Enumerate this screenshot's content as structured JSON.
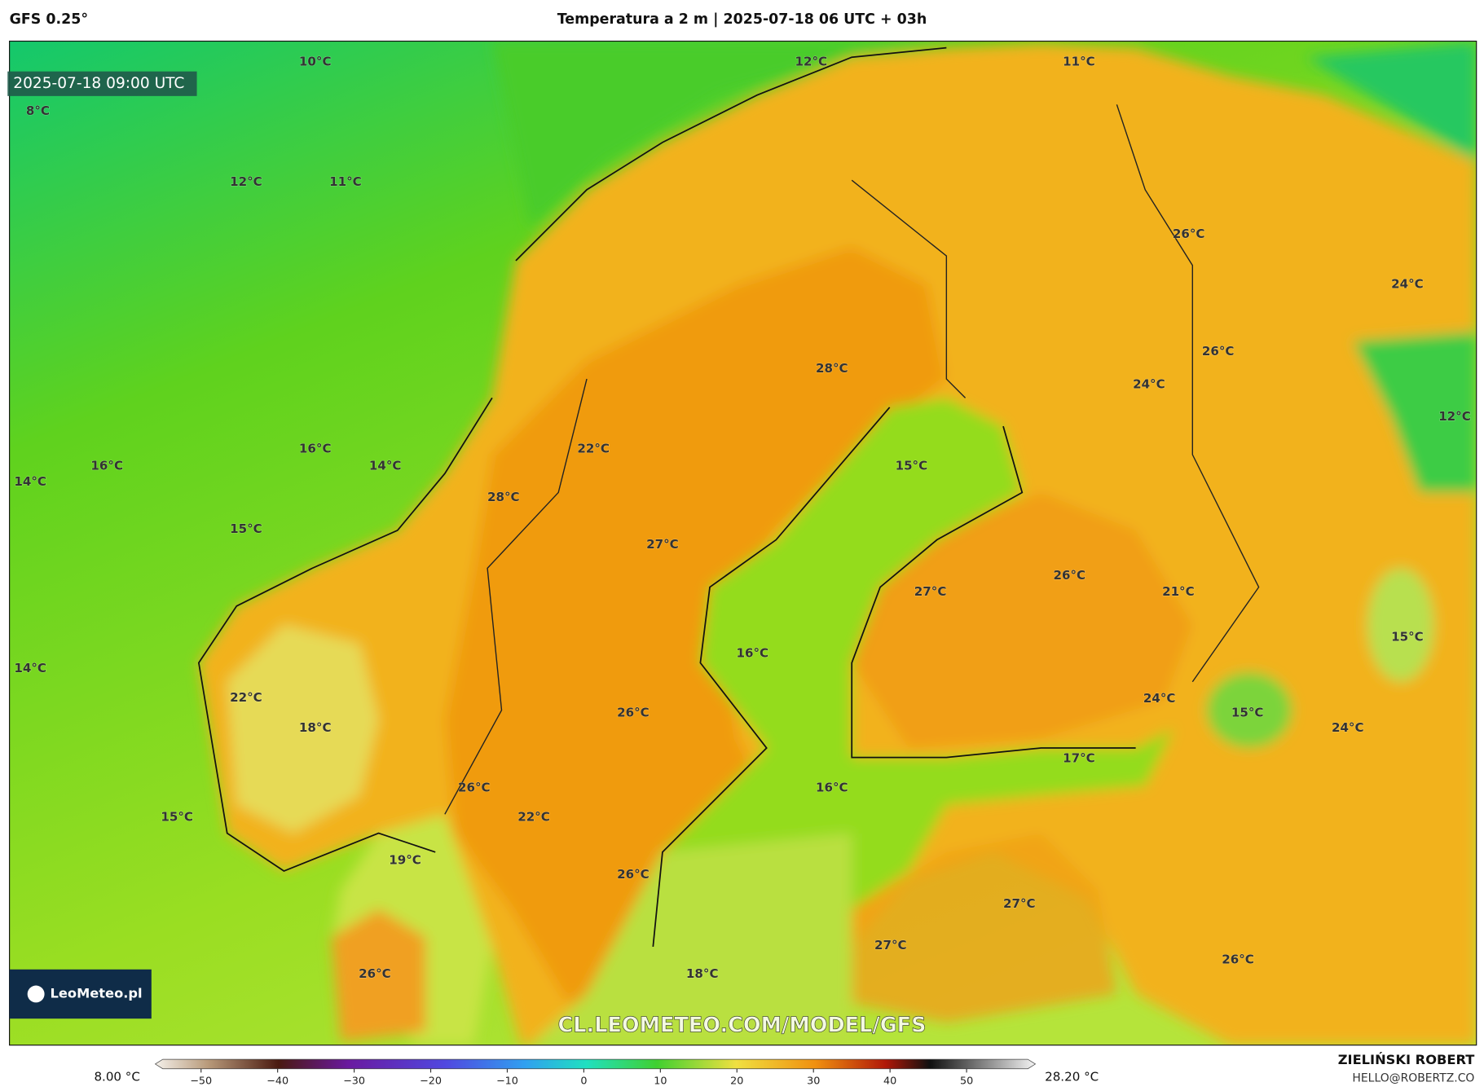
{
  "header": {
    "model": "GFS 0.25°",
    "title": "Temperatura a 2 m | 2025-07-18 06 UTC + 03h"
  },
  "valid_time": "2025-07-18 09:00 UTC",
  "watermark": "CL.LEOMETEO.COM/MODEL/GFS",
  "logo": "LeoMeteo.pl",
  "labels": [
    "10°C",
    "12°C",
    "11°C",
    "8°C",
    "12°C",
    "11°C",
    "26°C",
    "24°C",
    "26°C",
    "28°C",
    "24°C",
    "12°C",
    "16°C",
    "22°C",
    "16°C",
    "14°C",
    "15°C",
    "14°C",
    "28°C",
    "15°C",
    "27°C",
    "26°C",
    "27°C",
    "21°C",
    "15°C",
    "16°C",
    "14°C",
    "22°C",
    "24°C",
    "26°C",
    "15°C",
    "18°C",
    "24°C",
    "17°C",
    "16°C",
    "26°C",
    "15°C",
    "22°C",
    "19°C",
    "26°C",
    "27°C",
    "27°C",
    "26°C",
    "26°C",
    "18°C"
  ],
  "colorbar": {
    "min_label": "8.00 °C",
    "max_label": "28.20 °C",
    "range": [
      -55,
      58
    ],
    "ticks": [
      {
        "value": -50,
        "label": "−50"
      },
      {
        "value": -40,
        "label": "−40"
      },
      {
        "value": -30,
        "label": "−30"
      },
      {
        "value": -20,
        "label": "−20"
      },
      {
        "value": -10,
        "label": "−10"
      },
      0,
      10,
      20,
      30,
      40,
      50
    ]
  },
  "footer": {
    "author": "ZIELIŃSKI ROBERT",
    "email": "HELLO@ROBERTZ.CO"
  }
}
